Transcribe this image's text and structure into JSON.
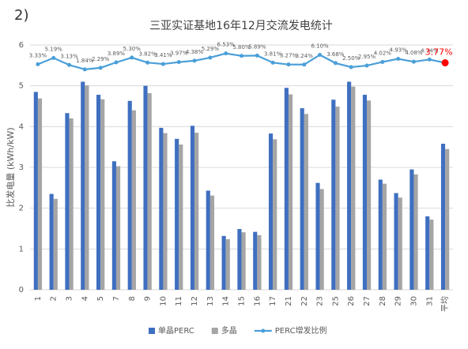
{
  "chart_data": {
    "type": "bar_line",
    "label": "2)",
    "title": "三亚实证基地16年12月交流发电统计",
    "y_label": "比发电量 (kWh/kW)",
    "categories": [
      "1",
      "2",
      "3",
      "4",
      "5",
      "7",
      "8",
      "9",
      "10",
      "11",
      "12",
      "13",
      "14",
      "15",
      "16",
      "17",
      "21",
      "22",
      "23",
      "25",
      "26",
      "27",
      "28",
      "29",
      "30",
      "31",
      "平均"
    ],
    "series": [
      {
        "name": "单晶PERC",
        "color": "#3f6fc0",
        "values": [
          4.85,
          2.35,
          4.33,
          5.1,
          4.78,
          3.15,
          4.63,
          5.0,
          3.97,
          3.7,
          4.02,
          2.43,
          1.32,
          1.49,
          1.42,
          3.83,
          4.95,
          4.45,
          2.62,
          4.66,
          5.1,
          4.78,
          2.7,
          2.37,
          2.95,
          1.8,
          3.58
        ]
      },
      {
        "name": "多晶",
        "color": "#a5a5a5",
        "values": [
          4.69,
          2.23,
          4.2,
          5.01,
          4.67,
          3.03,
          4.4,
          4.82,
          3.84,
          3.56,
          3.85,
          2.31,
          1.24,
          1.41,
          1.34,
          3.69,
          4.79,
          4.31,
          2.47,
          4.49,
          4.98,
          4.64,
          2.6,
          2.26,
          2.83,
          1.72,
          3.45
        ]
      },
      {
        "name": "PERC增发比例",
        "color": "#4a9fd8",
        "axis": "y2",
        "values": [
          3.33,
          5.19,
          3.13,
          1.84,
          2.29,
          3.89,
          5.3,
          3.82,
          3.41,
          3.97,
          4.38,
          5.29,
          6.53,
          5.8,
          5.89,
          3.81,
          3.27,
          3.24,
          6.1,
          3.68,
          2.5,
          2.95,
          4.02,
          4.93,
          4.08,
          4.74,
          3.77
        ],
        "value_labels": [
          "3.33%",
          "5.19%",
          "3.13%",
          "1.84%",
          "2.29%",
          "3.89%",
          "5.30%",
          "3.82%",
          "3.41%",
          "3.97%",
          "4.38%",
          "5.29%",
          "6.53%",
          "5.80%",
          "5.89%",
          "3.81%",
          "3.27%",
          "3.24%",
          "6.10%",
          "3.68%",
          "2.50%",
          "2.95%",
          "4.02%",
          "4.93%",
          "4.08%",
          "4.74%",
          "3.77%"
        ]
      }
    ],
    "last_point_color": "#ff0000",
    "ylim": [
      0,
      6
    ],
    "yticks": [
      0,
      1,
      2,
      3,
      4,
      5,
      6
    ],
    "y2lim": [
      -63,
      9
    ],
    "grid": true,
    "legend": "bottom"
  }
}
